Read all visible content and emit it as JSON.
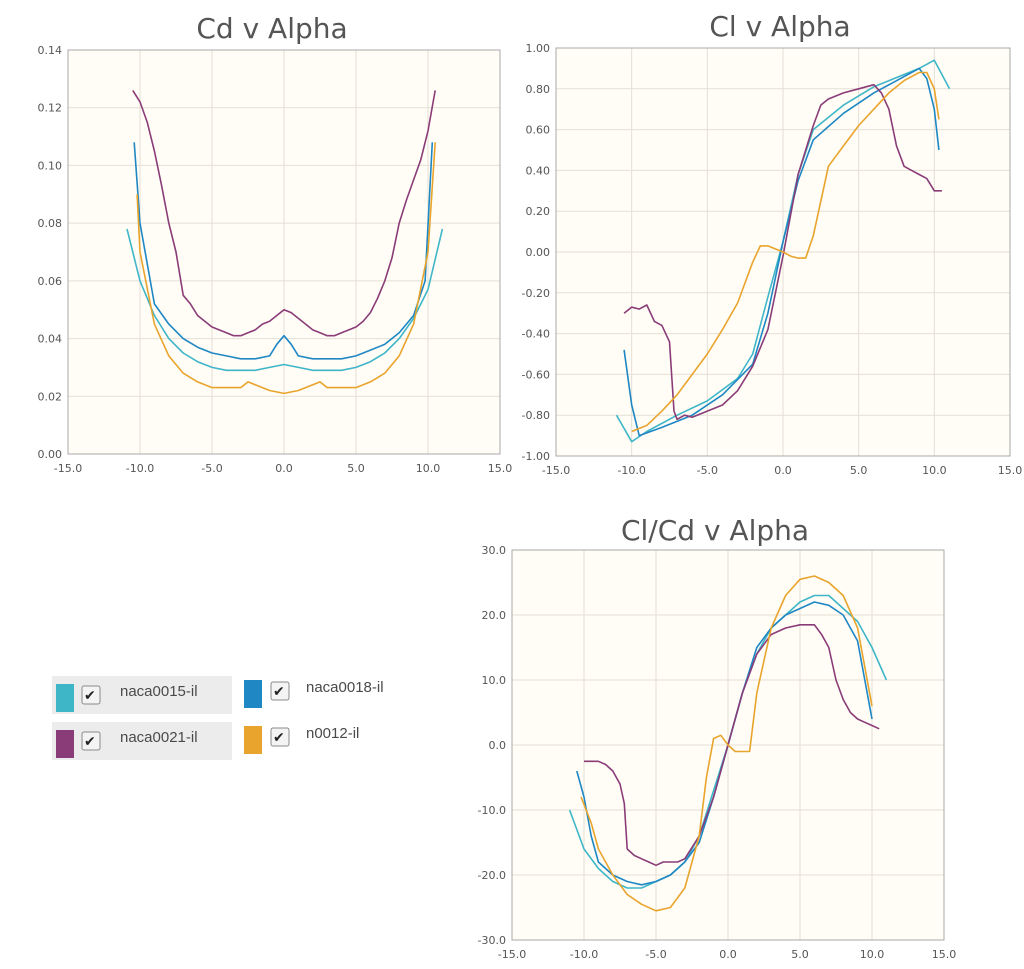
{
  "legend": {
    "items": [
      {
        "label": "naca0015-il",
        "color": "#3fb6c8"
      },
      {
        "label": "naca0018-il",
        "color": "#1e87c4"
      },
      {
        "label": "naca0021-il",
        "color": "#8a3c78"
      },
      {
        "label": "n0012-il",
        "color": "#e8a42c"
      }
    ]
  },
  "chart_data": [
    {
      "type": "line",
      "title": "Cd v Alpha",
      "xlim": [
        -15,
        15
      ],
      "ylim": [
        0,
        0.14
      ],
      "x_ticks": [
        "-15.0",
        "-10.0",
        "-5.0",
        "0.0",
        "5.0",
        "10.0",
        "15.0"
      ],
      "y_ticks": [
        "0.00",
        "0.02",
        "0.04",
        "0.06",
        "0.08",
        "0.10",
        "0.12",
        "0.14"
      ],
      "grid": true,
      "series": [
        {
          "name": "naca0015-il",
          "x": [
            -10.9,
            -10.0,
            -9.0,
            -8.0,
            -7.0,
            -6.0,
            -5.0,
            -4.0,
            -3.0,
            -2.0,
            -1.0,
            0.0,
            1.0,
            2.0,
            3.0,
            4.0,
            5.0,
            6.0,
            7.0,
            8.0,
            9.0,
            10.0,
            11.0
          ],
          "y": [
            0.078,
            0.06,
            0.048,
            0.04,
            0.035,
            0.032,
            0.03,
            0.029,
            0.029,
            0.029,
            0.03,
            0.031,
            0.03,
            0.029,
            0.029,
            0.029,
            0.03,
            0.032,
            0.035,
            0.04,
            0.047,
            0.057,
            0.078
          ]
        },
        {
          "name": "naca0018-il",
          "x": [
            -10.4,
            -10.0,
            -9.0,
            -8.0,
            -7.0,
            -6.0,
            -5.0,
            -4.0,
            -3.0,
            -2.0,
            -1.0,
            -0.5,
            0.0,
            0.5,
            1.0,
            2.0,
            3.0,
            4.0,
            5.0,
            6.0,
            7.0,
            8.0,
            9.0,
            9.8,
            10.3
          ],
          "y": [
            0.108,
            0.08,
            0.052,
            0.045,
            0.04,
            0.037,
            0.035,
            0.034,
            0.033,
            0.033,
            0.034,
            0.038,
            0.041,
            0.038,
            0.034,
            0.033,
            0.033,
            0.033,
            0.034,
            0.036,
            0.038,
            0.042,
            0.048,
            0.06,
            0.108
          ]
        },
        {
          "name": "naca0021-il",
          "x": [
            -10.5,
            -10.0,
            -9.5,
            -9.0,
            -8.5,
            -8.0,
            -7.5,
            -7.0,
            -6.5,
            -6.0,
            -5.5,
            -5.0,
            -4.5,
            -4.0,
            -3.5,
            -3.0,
            -2.5,
            -2.0,
            -1.5,
            -1.0,
            -0.5,
            0.0,
            0.5,
            1.0,
            1.5,
            2.0,
            2.5,
            3.0,
            3.5,
            4.0,
            4.5,
            5.0,
            5.5,
            6.0,
            6.5,
            7.0,
            7.5,
            8.0,
            8.5,
            9.0,
            9.5,
            10.0,
            10.5
          ],
          "y": [
            0.126,
            0.122,
            0.115,
            0.105,
            0.093,
            0.08,
            0.07,
            0.055,
            0.052,
            0.048,
            0.046,
            0.044,
            0.043,
            0.042,
            0.041,
            0.041,
            0.042,
            0.043,
            0.045,
            0.046,
            0.048,
            0.05,
            0.049,
            0.047,
            0.045,
            0.043,
            0.042,
            0.041,
            0.041,
            0.042,
            0.043,
            0.044,
            0.046,
            0.049,
            0.054,
            0.06,
            0.068,
            0.08,
            0.088,
            0.095,
            0.102,
            0.112,
            0.126
          ]
        },
        {
          "name": "n0012-il",
          "x": [
            -10.2,
            -10.0,
            -9.0,
            -8.0,
            -7.0,
            -6.0,
            -5.0,
            -4.0,
            -3.0,
            -2.5,
            -2.0,
            -1.0,
            0.0,
            1.0,
            2.0,
            2.5,
            3.0,
            4.0,
            5.0,
            6.0,
            7.0,
            8.0,
            9.0,
            10.0,
            10.5
          ],
          "y": [
            0.09,
            0.07,
            0.045,
            0.034,
            0.028,
            0.025,
            0.023,
            0.023,
            0.023,
            0.025,
            0.024,
            0.022,
            0.021,
            0.022,
            0.024,
            0.025,
            0.023,
            0.023,
            0.023,
            0.025,
            0.028,
            0.034,
            0.045,
            0.07,
            0.108
          ]
        }
      ]
    },
    {
      "type": "line",
      "title": "Cl v Alpha",
      "xlim": [
        -15,
        15
      ],
      "ylim": [
        -1.0,
        1.0
      ],
      "x_ticks": [
        "-15.0",
        "-10.0",
        "-5.0",
        "0.0",
        "5.0",
        "10.0",
        "15.0"
      ],
      "y_ticks": [
        "-1.00",
        "-0.80",
        "-0.60",
        "-0.40",
        "-0.20",
        "0.00",
        "0.20",
        "0.40",
        "0.60",
        "0.80",
        "1.00"
      ],
      "grid": true,
      "series": [
        {
          "name": "naca0015-il",
          "x": [
            -11.0,
            -10.0,
            -9.0,
            -7.0,
            -5.0,
            -3.0,
            -2.0,
            -1.0,
            0.0,
            1.0,
            2.0,
            4.0,
            6.0,
            8.0,
            9.0,
            10.0,
            11.0
          ],
          "y": [
            -0.8,
            -0.93,
            -0.88,
            -0.8,
            -0.73,
            -0.62,
            -0.5,
            -0.22,
            0.05,
            0.38,
            0.6,
            0.72,
            0.81,
            0.87,
            0.9,
            0.94,
            0.8
          ]
        },
        {
          "name": "naca0018-il",
          "x": [
            -10.5,
            -10.0,
            -9.5,
            -8.0,
            -6.0,
            -4.0,
            -2.0,
            -1.0,
            0.0,
            1.0,
            2.0,
            4.0,
            6.0,
            8.0,
            9.0,
            9.5,
            10.0,
            10.3
          ],
          "y": [
            -0.48,
            -0.75,
            -0.9,
            -0.86,
            -0.8,
            -0.7,
            -0.55,
            -0.3,
            0.05,
            0.35,
            0.55,
            0.68,
            0.78,
            0.86,
            0.9,
            0.85,
            0.7,
            0.5
          ]
        },
        {
          "name": "naca0021-il",
          "x": [
            -10.5,
            -10.0,
            -9.5,
            -9.0,
            -8.5,
            -8.0,
            -7.5,
            -7.2,
            -7.0,
            -6.5,
            -6.0,
            -5.0,
            -4.0,
            -3.0,
            -2.0,
            -1.0,
            0.0,
            1.0,
            2.0,
            2.5,
            3.0,
            4.0,
            5.0,
            6.0,
            6.5,
            7.0,
            7.5,
            8.0,
            8.5,
            9.0,
            9.5,
            10.0,
            10.5
          ],
          "y": [
            -0.3,
            -0.27,
            -0.28,
            -0.26,
            -0.34,
            -0.36,
            -0.44,
            -0.78,
            -0.82,
            -0.8,
            -0.81,
            -0.78,
            -0.75,
            -0.68,
            -0.56,
            -0.38,
            -0.02,
            0.38,
            0.62,
            0.72,
            0.75,
            0.78,
            0.8,
            0.82,
            0.78,
            0.7,
            0.52,
            0.42,
            0.4,
            0.38,
            0.36,
            0.3,
            0.3
          ]
        },
        {
          "name": "n0012-il",
          "x": [
            -10.0,
            -9.0,
            -8.0,
            -7.0,
            -6.0,
            -5.0,
            -4.0,
            -3.0,
            -2.0,
            -1.5,
            -1.0,
            0.0,
            0.5,
            1.0,
            1.5,
            2.0,
            3.0,
            4.0,
            5.0,
            6.0,
            7.0,
            8.0,
            9.0,
            9.5,
            10.0,
            10.3
          ],
          "y": [
            -0.88,
            -0.85,
            -0.78,
            -0.7,
            -0.6,
            -0.5,
            -0.38,
            -0.25,
            -0.05,
            0.03,
            0.03,
            0.0,
            -0.02,
            -0.03,
            -0.03,
            0.08,
            0.42,
            0.52,
            0.62,
            0.7,
            0.78,
            0.84,
            0.88,
            0.88,
            0.8,
            0.65
          ]
        }
      ]
    },
    {
      "type": "line",
      "title": "Cl/Cd v Alpha",
      "xlim": [
        -15,
        15
      ],
      "ylim": [
        -30,
        30
      ],
      "x_ticks": [
        "-15.0",
        "-10.0",
        "-5.0",
        "0.0",
        "5.0",
        "10.0",
        "15.0"
      ],
      "y_ticks": [
        "-30.0",
        "-20.0",
        "-10.0",
        "0.0",
        "10.0",
        "20.0",
        "30.0"
      ],
      "grid": true,
      "series": [
        {
          "name": "naca0015-il",
          "x": [
            -11.0,
            -10.0,
            -9.0,
            -8.0,
            -7.0,
            -6.0,
            -5.0,
            -4.0,
            -3.0,
            -2.0,
            -1.0,
            0.0,
            1.0,
            2.0,
            3.0,
            4.0,
            5.0,
            6.0,
            7.0,
            8.0,
            9.0,
            10.0,
            11.0
          ],
          "y": [
            -10.0,
            -16.0,
            -19.0,
            -21.0,
            -22.0,
            -22.0,
            -21.0,
            -20.0,
            -18.0,
            -14.0,
            -7.0,
            0.0,
            8.0,
            14.0,
            18.0,
            20.0,
            22.0,
            23.0,
            23.0,
            21.0,
            19.0,
            15.0,
            10.0
          ]
        },
        {
          "name": "naca0018-il",
          "x": [
            -10.5,
            -10.0,
            -9.5,
            -9.0,
            -8.0,
            -7.0,
            -6.0,
            -5.0,
            -4.0,
            -3.0,
            -2.0,
            -1.0,
            0.0,
            1.0,
            2.0,
            3.0,
            4.0,
            5.0,
            6.0,
            7.0,
            8.0,
            9.0,
            9.5,
            10.0
          ],
          "y": [
            -4.0,
            -8.0,
            -14.0,
            -18.0,
            -20.0,
            -21.0,
            -21.5,
            -21.0,
            -20.0,
            -18.0,
            -15.0,
            -8.0,
            0.0,
            8.0,
            15.0,
            18.0,
            20.0,
            21.0,
            22.0,
            21.5,
            20.0,
            16.0,
            10.0,
            4.0
          ]
        },
        {
          "name": "naca0021-il",
          "x": [
            -10.0,
            -9.5,
            -9.0,
            -8.5,
            -8.0,
            -7.5,
            -7.2,
            -7.0,
            -6.5,
            -6.0,
            -5.5,
            -5.0,
            -4.5,
            -4.0,
            -3.5,
            -3.0,
            -2.0,
            -1.0,
            0.0,
            1.0,
            2.0,
            3.0,
            4.0,
            5.0,
            6.0,
            6.5,
            7.0,
            7.5,
            8.0,
            8.5,
            9.0,
            9.5,
            10.0,
            10.5
          ],
          "y": [
            -2.5,
            -2.5,
            -2.5,
            -3.0,
            -4.0,
            -6.0,
            -9.0,
            -16.0,
            -17.0,
            -17.5,
            -18.0,
            -18.5,
            -18.0,
            -18.0,
            -18.0,
            -17.5,
            -14.0,
            -8.0,
            0.0,
            8.0,
            14.0,
            17.0,
            18.0,
            18.5,
            18.5,
            17.0,
            15.0,
            10.0,
            7.0,
            5.0,
            4.0,
            3.5,
            3.0,
            2.5
          ]
        },
        {
          "name": "n0012-il",
          "x": [
            -10.2,
            -9.5,
            -9.0,
            -8.0,
            -7.0,
            -6.0,
            -5.0,
            -4.0,
            -3.0,
            -2.0,
            -1.5,
            -1.0,
            -0.5,
            0.0,
            0.5,
            1.0,
            1.5,
            2.0,
            3.0,
            4.0,
            5.0,
            6.0,
            7.0,
            8.0,
            9.0,
            9.5,
            10.0
          ],
          "y": [
            -8.0,
            -12.0,
            -16.0,
            -20.0,
            -23.0,
            -24.5,
            -25.5,
            -25.0,
            -22.0,
            -14.0,
            -5.0,
            1.0,
            1.5,
            0.0,
            -1.0,
            -1.0,
            -1.0,
            8.0,
            18.0,
            23.0,
            25.5,
            26.0,
            25.0,
            23.0,
            18.0,
            12.0,
            6.0
          ]
        }
      ]
    }
  ]
}
